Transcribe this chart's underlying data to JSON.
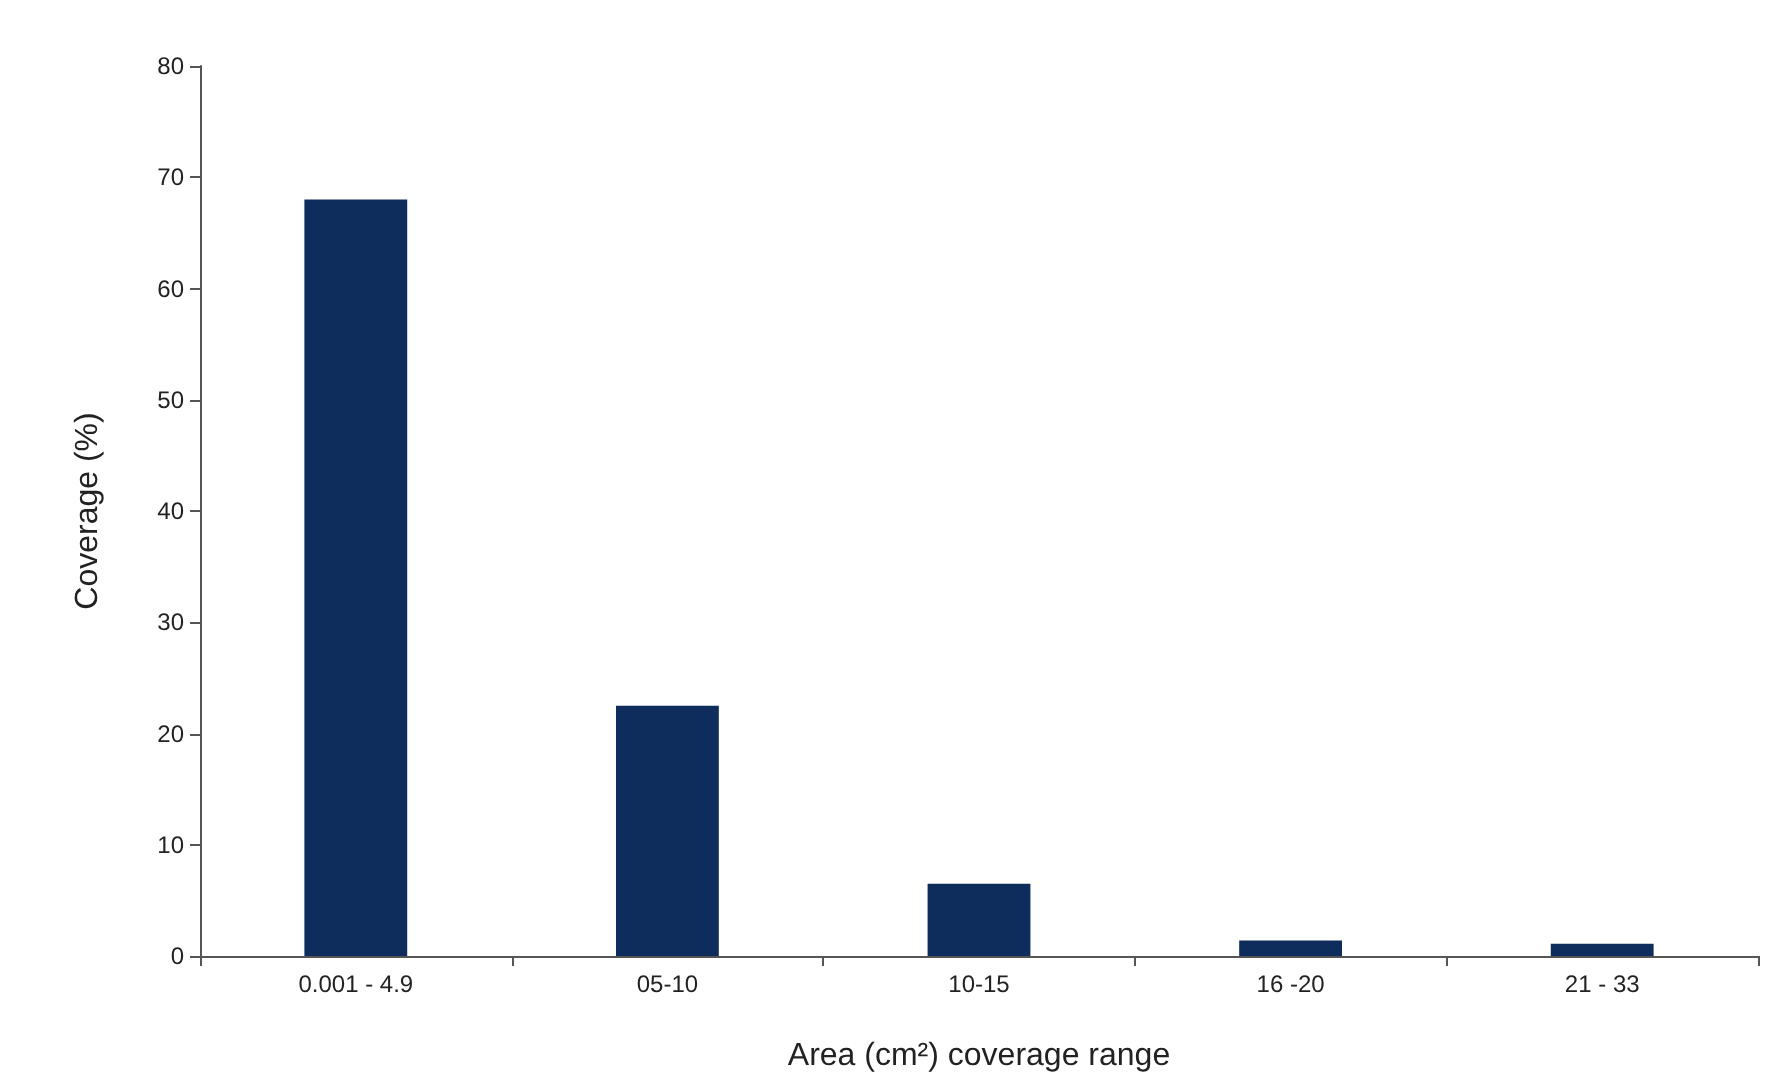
{
  "chart_data": {
    "type": "bar",
    "xlabel": "Area (cm²) coverage range",
    "ylabel": "Coverage (%)",
    "categories": [
      "0.001 - 4.9",
      "05-10",
      "10-15",
      "16 -20",
      "21 - 33"
    ],
    "values": [
      68,
      22.5,
      6.5,
      1.4,
      1.1
    ],
    "color": "#0e2d5c",
    "ylim": [
      0,
      80
    ],
    "yticks": [
      0,
      10,
      20,
      30,
      40,
      50,
      60,
      70,
      80
    ],
    "grid": false
  }
}
